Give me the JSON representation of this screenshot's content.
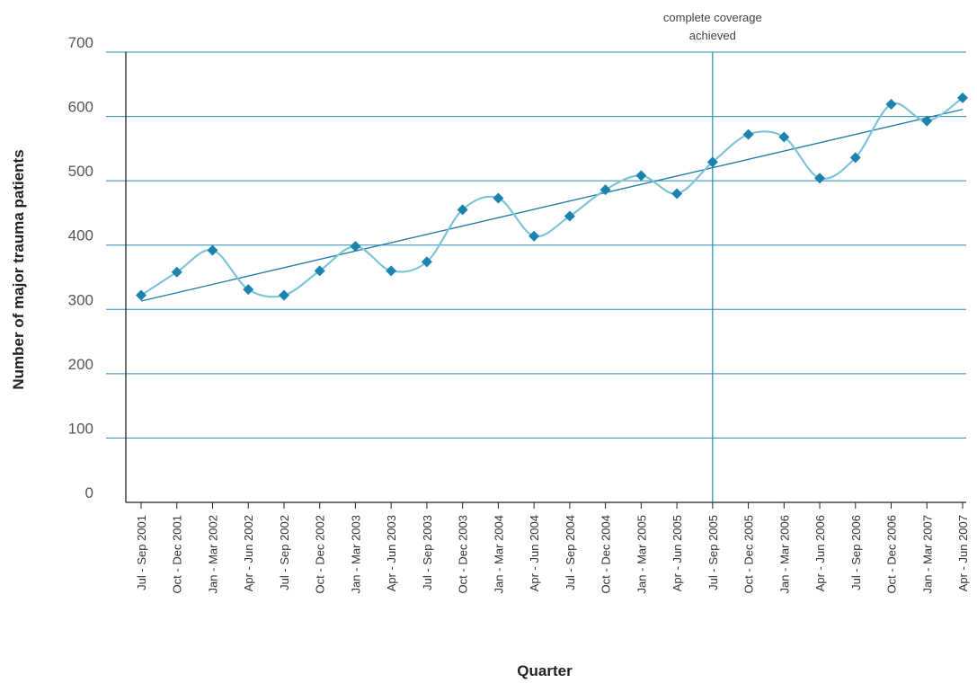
{
  "chart_data": {
    "type": "line",
    "title": "",
    "xlabel": "Quarter",
    "ylabel": "Number of major trauma patients",
    "ylim": [
      0,
      700
    ],
    "yticks": [
      0,
      100,
      200,
      300,
      400,
      500,
      600,
      700
    ],
    "grid": "horizontal",
    "legend": "none",
    "categories": [
      "Jul - Sep 2001",
      "Oct - Dec 2001",
      "Jan - Mar 2002",
      "Apr - Jun 2002",
      "Jul - Sep 2002",
      "Oct - Dec 2002",
      "Jan - Mar 2003",
      "Apr - Jun 2003",
      "Jul - Sep 2003",
      "Oct - Dec 2003",
      "Jan - Mar 2004",
      "Apr - Jun 2004",
      "Jul - Sep 2004",
      "Oct - Dec 2004",
      "Jan - Mar 2005",
      "Apr - Jun 2005",
      "Jul - Sep 2005",
      "Oct - Dec 2005",
      "Jan - Mar 2006",
      "Apr - Jun 2006",
      "Jul - Sep 2006",
      "Oct - Dec 2006",
      "Jan - Mar 2007",
      "Apr - Jun 2007"
    ],
    "series": [
      {
        "values": [
          322,
          358,
          392,
          331,
          322,
          360,
          398,
          360,
          374,
          455,
          473,
          414,
          445,
          486,
          508,
          480,
          529,
          572,
          568,
          504,
          536,
          619,
          593,
          629
        ]
      }
    ],
    "trendline": {
      "start": 313,
      "end": 611
    },
    "annotation": {
      "text_line1": "complete coverage",
      "text_line2": "achieved",
      "at_category": "Jul - Sep 2005"
    },
    "colors": {
      "line": "#7fc4d6",
      "marker": "#1b83ad",
      "trend": "#1b7aa6",
      "grid": "#2b88b5",
      "axis": "#222222",
      "vline": "#2b88b5"
    }
  }
}
